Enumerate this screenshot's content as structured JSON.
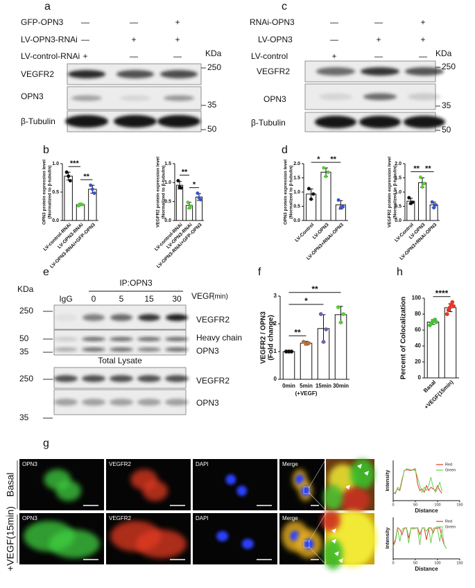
{
  "panel_letters": [
    "a",
    "b",
    "c",
    "d",
    "e",
    "f",
    "g",
    "h"
  ],
  "blot_a": {
    "rows": [
      {
        "label": "GFP-OPN3",
        "signs": [
          "—",
          "—",
          "+"
        ]
      },
      {
        "label": "LV-OPN3-RNAi",
        "signs": [
          "—",
          "+",
          "+"
        ]
      },
      {
        "label": "LV-control-RNAi",
        "signs": [
          "+",
          "—",
          "—"
        ]
      }
    ],
    "unit": "KDa",
    "bands": [
      "VEGFR2",
      "OPN3",
      "β-Tubulin"
    ],
    "markers": [
      "250",
      "35",
      "50"
    ]
  },
  "blot_c": {
    "rows": [
      {
        "label": "RNAi-OPN3",
        "signs": [
          "—",
          "—",
          "+"
        ]
      },
      {
        "label": "LV-OPN3",
        "signs": [
          "—",
          "+",
          "+"
        ]
      },
      {
        "label": "LV-control",
        "signs": [
          "+",
          "—",
          "—"
        ]
      }
    ],
    "unit": "KDa",
    "bands": [
      "VEGFR2",
      "OPN3",
      "β-Tubulin"
    ],
    "markers": [
      "250",
      "35",
      "50"
    ]
  },
  "blot_e": {
    "unit": "KDa",
    "ip": "IP:OPN3",
    "lanes": [
      "IgG",
      "0",
      "5",
      "15",
      "30"
    ],
    "treatment": "VEGF",
    "treatment_unit": "(min)",
    "bands": [
      "VEGFR2",
      "Heavy chain",
      "OPN3",
      "VEGFR2",
      "OPN3"
    ],
    "section": "Total Lysate",
    "markers": [
      "250",
      "50",
      "35",
      "250",
      "35"
    ]
  },
  "microscopy": {
    "rows": [
      "Basal",
      "+VEGF(15min)"
    ],
    "channels": [
      "OPN3",
      "VEGFR2",
      "DAPI",
      "Merge"
    ]
  },
  "chart_data": [
    {
      "type": "bar",
      "ylabel": [
        "OPN3  protein expression level",
        "(Normalized to β-tubulin)"
      ],
      "categories": [
        "LV-control-RNAi",
        "LV-OPN3-RNAi",
        "LV-OPN3-RNAi+GFP-OPN3"
      ],
      "values": [
        0.78,
        0.28,
        0.55
      ],
      "errors": [
        0.07,
        0.02,
        0.07
      ],
      "points": [
        [
          0.85,
          0.78,
          0.7
        ],
        [
          0.26,
          0.29,
          0.28
        ],
        [
          0.62,
          0.55,
          0.48
        ]
      ],
      "point_colors": [
        "#111111",
        "#5cc93c",
        "#3a55c8"
      ],
      "color": "#ffffff",
      "ylim": [
        0,
        1
      ],
      "yticks": [
        {
          "value": 0,
          "label": "0.0"
        },
        0.5,
        {
          "value": 1,
          "label": "1.0"
        }
      ],
      "significance": [
        "***",
        "**"
      ],
      "compare": "adjacent"
    },
    {
      "type": "bar",
      "ylabel": [
        "VEGFR2 protein expression level",
        "(Normalized to β-tubulin)"
      ],
      "categories": [
        "LV-control-RNAi",
        "LV-OPN3-RNAi",
        "LV-OPN3-RNAi+GFP-OPN3"
      ],
      "values": [
        0.93,
        0.4,
        0.62
      ],
      "errors": [
        0.1,
        0.08,
        0.09
      ],
      "points": [
        [
          1.05,
          0.88,
          0.86
        ],
        [
          0.48,
          0.33,
          0.38
        ],
        [
          0.72,
          0.6,
          0.55
        ]
      ],
      "point_colors": [
        "#111111",
        "#5cc93c",
        "#3a55c8"
      ],
      "color": "#ffffff",
      "ylim": [
        0,
        1.5
      ],
      "yticks": [
        {
          "value": 0,
          "label": "0.0"
        },
        0.5,
        {
          "value": 1,
          "label": "1.0"
        },
        1.5
      ],
      "significance": [
        "**",
        "*"
      ],
      "compare": "adjacent"
    },
    {
      "type": "bar",
      "ylabel": [
        "OPN3  protein expression level",
        "(Normalized to β-tubulin)"
      ],
      "categories": [
        "LV-Control",
        "LV-OPN3",
        "LV-OPN3+RNAi-OPN3"
      ],
      "values": [
        0.93,
        1.7,
        0.55
      ],
      "errors": [
        0.18,
        0.15,
        0.15
      ],
      "points": [
        [
          1.12,
          0.75,
          0.93
        ],
        [
          1.85,
          1.55,
          1.7
        ],
        [
          0.72,
          0.45,
          0.48
        ]
      ],
      "point_colors": [
        "#111111",
        "#5cc93c",
        "#3a55c8"
      ],
      "color": "#ffffff",
      "ylim": [
        0,
        2
      ],
      "yticks": [
        {
          "value": 0,
          "label": "0.0"
        },
        0.5,
        {
          "value": 1,
          "label": "1.0"
        },
        1.5,
        {
          "value": 2,
          "label": "2.0"
        }
      ],
      "significance": [
        "*",
        "**"
      ],
      "compare": "adjacent"
    },
    {
      "type": "bar",
      "ylabel": [
        "VEGFR2 protein expression level",
        "(Normalized to β-tubulin)"
      ],
      "categories": [
        "LV-Control",
        "LV-OPN3",
        "LV-OPN3+RNAi-OPN3"
      ],
      "values": [
        0.68,
        1.33,
        0.55
      ],
      "errors": [
        0.1,
        0.17,
        0.1
      ],
      "points": [
        [
          0.8,
          0.6,
          0.64
        ],
        [
          1.52,
          1.18,
          1.3
        ],
        [
          0.65,
          0.45,
          0.55
        ]
      ],
      "point_colors": [
        "#111111",
        "#5cc93c",
        "#3a55c8"
      ],
      "color": "#ffffff",
      "ylim": [
        0,
        2
      ],
      "yticks": [
        {
          "value": 0,
          "label": "0.0"
        },
        0.5,
        {
          "value": 1,
          "label": "1.0"
        },
        1.5,
        {
          "value": 2,
          "label": "2.0"
        }
      ],
      "significance": [
        "**",
        "**"
      ],
      "compare": "adjacent"
    },
    {
      "type": "bar",
      "ylabel": [
        "VEGFR2 / OPN3",
        "(Fold change)"
      ],
      "categories": [
        "0min",
        "5min",
        "15min",
        "30min"
      ],
      "x_annotation": "(+VEGF)",
      "values": [
        1.0,
        1.3,
        1.83,
        2.33
      ],
      "errors": [
        0.02,
        0.07,
        0.5,
        0.3
      ],
      "points": [
        [
          1,
          1,
          1
        ],
        [
          1.35,
          1.28,
          1.3
        ],
        [
          2.35,
          1.35,
          1.8
        ],
        [
          2.6,
          2.05,
          2.35
        ]
      ],
      "point_colors": [
        "#111111",
        "#b0703a",
        "#7b5ea7",
        "#5cc93c"
      ],
      "color": "#ffffff",
      "ylim": [
        0,
        3
      ],
      "yticks": [
        0,
        1,
        2,
        3
      ],
      "significance": [
        "**",
        "*",
        "**"
      ],
      "compare": "first"
    },
    {
      "type": "bar",
      "ylabel": [
        "Percent of Colocalization"
      ],
      "categories": [
        "Basal",
        "+VEGF(15min)"
      ],
      "values": [
        70,
        88
      ],
      "errors": [
        3,
        5
      ],
      "points": [
        [
          66,
          68,
          70,
          72,
          73,
          70
        ],
        [
          80,
          85,
          88,
          92,
          95,
          90
        ]
      ],
      "point_colors": [
        "#4cbf3c",
        "#e0382a"
      ],
      "color": "#ffffff",
      "ylim": [
        0,
        100
      ],
      "yticks": [
        0,
        20,
        40,
        60,
        80,
        100
      ],
      "significance": [
        "****"
      ],
      "compare": "adjacent"
    },
    {
      "type": "line",
      "ylabel": "Intensity",
      "xlabel": "Distance",
      "xlim": [
        0,
        150
      ],
      "xticks": [
        0,
        50,
        100,
        150
      ],
      "ylim": [
        0,
        120
      ],
      "legend": "upper right",
      "series": [
        {
          "name": "Red",
          "color": "#e03a2c",
          "x": [
            0,
            5,
            10,
            15,
            20,
            25,
            30,
            40,
            50,
            55,
            60,
            65,
            70,
            75,
            80,
            85,
            90,
            95,
            100,
            105,
            110
          ],
          "values": [
            20,
            25,
            35,
            30,
            60,
            90,
            92,
            90,
            95,
            50,
            30,
            35,
            25,
            45,
            30,
            40,
            35,
            30,
            45,
            30,
            22
          ]
        },
        {
          "name": "Green",
          "color": "#6ccf4d",
          "x": [
            0,
            5,
            10,
            15,
            20,
            25,
            30,
            40,
            50,
            55,
            60,
            65,
            70,
            75,
            80,
            85,
            90,
            95,
            100,
            105,
            110
          ],
          "values": [
            25,
            20,
            40,
            35,
            65,
            88,
            95,
            92,
            90,
            70,
            45,
            25,
            40,
            30,
            45,
            70,
            40,
            25,
            35,
            55,
            28
          ]
        }
      ]
    },
    {
      "type": "line",
      "ylabel": "Intensity",
      "xlabel": "Distance",
      "xlim": [
        0,
        150
      ],
      "xticks": [
        0,
        50,
        100,
        150
      ],
      "ylim": [
        0,
        120
      ],
      "legend": "upper right",
      "series": [
        {
          "name": "Red",
          "color": "#e03a2c",
          "x": [
            0,
            5,
            10,
            15,
            20,
            25,
            30,
            35,
            40,
            45,
            50,
            55,
            60,
            65,
            70,
            75,
            80,
            85,
            90,
            95,
            100,
            105,
            110,
            115,
            120
          ],
          "values": [
            40,
            55,
            90,
            85,
            70,
            88,
            90,
            60,
            88,
            90,
            88,
            90,
            70,
            88,
            90,
            55,
            88,
            90,
            75,
            90,
            88,
            90,
            60,
            40,
            30
          ]
        },
        {
          "name": "Green",
          "color": "#6ccf4d",
          "x": [
            0,
            5,
            10,
            15,
            20,
            25,
            30,
            35,
            40,
            45,
            50,
            55,
            60,
            65,
            70,
            75,
            80,
            85,
            90,
            95,
            100,
            105,
            110,
            115,
            120
          ],
          "values": [
            35,
            50,
            88,
            50,
            85,
            90,
            88,
            45,
            90,
            85,
            90,
            88,
            40,
            90,
            88,
            80,
            90,
            45,
            88,
            90,
            85,
            50,
            88,
            40,
            30
          ]
        }
      ]
    }
  ]
}
